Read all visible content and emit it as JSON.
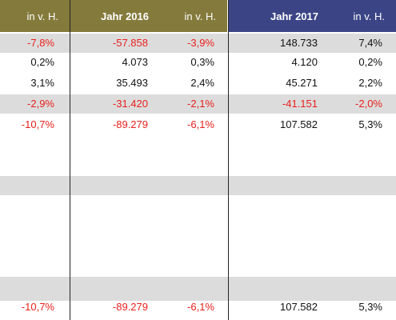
{
  "headers": [
    {
      "label": "in v. H.",
      "bold": false
    },
    {
      "label": "Jahr 2016",
      "bold": true
    },
    {
      "label": "in v. H.",
      "bold": false
    },
    {
      "label": "Jahr 2017",
      "bold": true
    },
    {
      "label": "in v. H.",
      "bold": false
    }
  ],
  "colors": {
    "header_2016": "#847a3b",
    "header_2017": "#3b4586",
    "negative": "#e8201c",
    "band": "#dcdcdc"
  },
  "rows": [
    {
      "cells": [
        "-7,8%",
        "-57.858",
        "-3,9%",
        "148.733",
        "7,4%"
      ],
      "neg": [
        true,
        true,
        true,
        false,
        false
      ]
    },
    {
      "cells": [
        "0,2%",
        "4.073",
        "0,3%",
        "4.120",
        "0,2%"
      ],
      "neg": [
        false,
        false,
        false,
        false,
        false
      ]
    },
    {
      "cells": [
        "3,1%",
        "35.493",
        "2,4%",
        "45.271",
        "2,2%"
      ],
      "neg": [
        false,
        false,
        false,
        false,
        false
      ]
    },
    {
      "cells": [
        "-2,9%",
        "-31.420",
        "-2,1%",
        "-41.151",
        "-2,0%"
      ],
      "neg": [
        true,
        true,
        true,
        true,
        true
      ]
    },
    {
      "cells": [
        "-10,7%",
        "-89.279",
        "-6,1%",
        "107.582",
        "5,3%"
      ],
      "neg": [
        true,
        true,
        true,
        false,
        false
      ]
    },
    {
      "cells": [
        "-10,7%",
        "-89.279",
        "-6,1%",
        "107.582",
        "5,3%"
      ],
      "neg": [
        true,
        true,
        true,
        false,
        false
      ]
    }
  ]
}
